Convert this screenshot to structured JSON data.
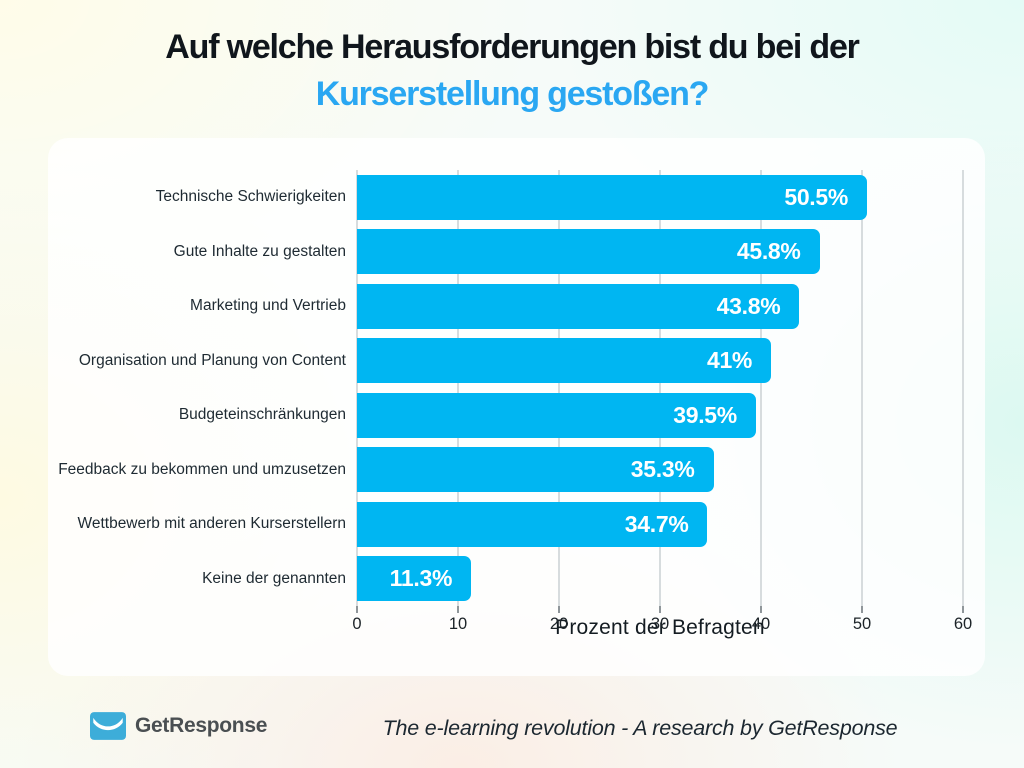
{
  "title": {
    "line1": "Auf welche Herausforderungen bist du bei der",
    "line2": "Kurserstellung gestoßen?"
  },
  "chart_data": {
    "type": "bar",
    "orientation": "horizontal",
    "title": "Auf welche Herausforderungen bist du bei der Kurserstellung gestoßen?",
    "categories": [
      "Technische Schwierigkeiten",
      "Gute Inhalte zu gestalten",
      "Marketing und Vertrieb",
      "Organisation und Planung von Content",
      "Budgeteinschränkungen",
      "Feedback zu bekommen und umzusetzen",
      "Wettbewerb mit anderen Kurserstellern",
      "Keine der genannten"
    ],
    "values": [
      50.5,
      45.8,
      43.8,
      41,
      39.5,
      35.3,
      34.7,
      11.3
    ],
    "value_labels": [
      "50.5%",
      "45.8%",
      "43.8%",
      "41%",
      "39.5%",
      "35.3%",
      "34.7%",
      "11.3%"
    ],
    "xlabel": "Prozent der Befragten",
    "xlim": [
      0,
      60
    ],
    "xticks": [
      0,
      10,
      20,
      30,
      40,
      50,
      60
    ],
    "grid": true,
    "legend": false,
    "bar_color": "#00b6f2",
    "value_label_color": "#ffffff",
    "gridline_color": "#d7dcde"
  },
  "colors": {
    "title_dark": "#10161c",
    "title_accent": "#2aa7f2",
    "card_background": "rgba(255,255,255,0.82)",
    "logo_blue": "#3dadd9"
  },
  "footer": {
    "brand": "GetResponse",
    "caption": "The e-learning revolution - A research by GetResponse"
  }
}
